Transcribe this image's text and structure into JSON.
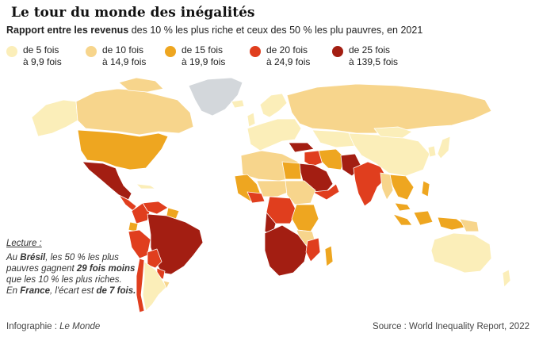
{
  "title": "Le tour du monde des inégalités",
  "subtitle": {
    "bold": "Rapport entre les revenus",
    "rest": " des 10 % les plus riche et ceux des 50 % les plu pauvres, en 2021"
  },
  "legend": [
    {
      "line1": "de 5 fois",
      "line2": "à 9,9 fois",
      "color": "#fbeeb9"
    },
    {
      "line1": "de 10 fois",
      "line2": "à 14,9 fois",
      "color": "#f7d58c"
    },
    {
      "line1": "de 15 fois",
      "line2": "à 19,9 fois",
      "color": "#eea620"
    },
    {
      "line1": "de 20 fois",
      "line2": "à 24,9 fois",
      "color": "#e03e1e"
    },
    {
      "line1": "de 25 fois",
      "line2": "à 139,5 fois",
      "color": "#a31e12"
    }
  ],
  "no_data_color": "#d3d7db",
  "lecture": {
    "heading": "Lecture :",
    "p1_a": "Au ",
    "p1_b": "Brésil",
    "p1_c": ", les 50 % les plus pauvres gagnent ",
    "p1_d": "29 fois moins",
    "p1_e": " que les 10 % les plus riches.",
    "p2_a": "En ",
    "p2_b": "France",
    "p2_c": ", l'écart est ",
    "p2_d": "de 7 fois."
  },
  "footer_left": {
    "prefix": "Infographie : ",
    "source": "Le Monde"
  },
  "footer_right": "Source : World Inequality Report, 2022"
}
